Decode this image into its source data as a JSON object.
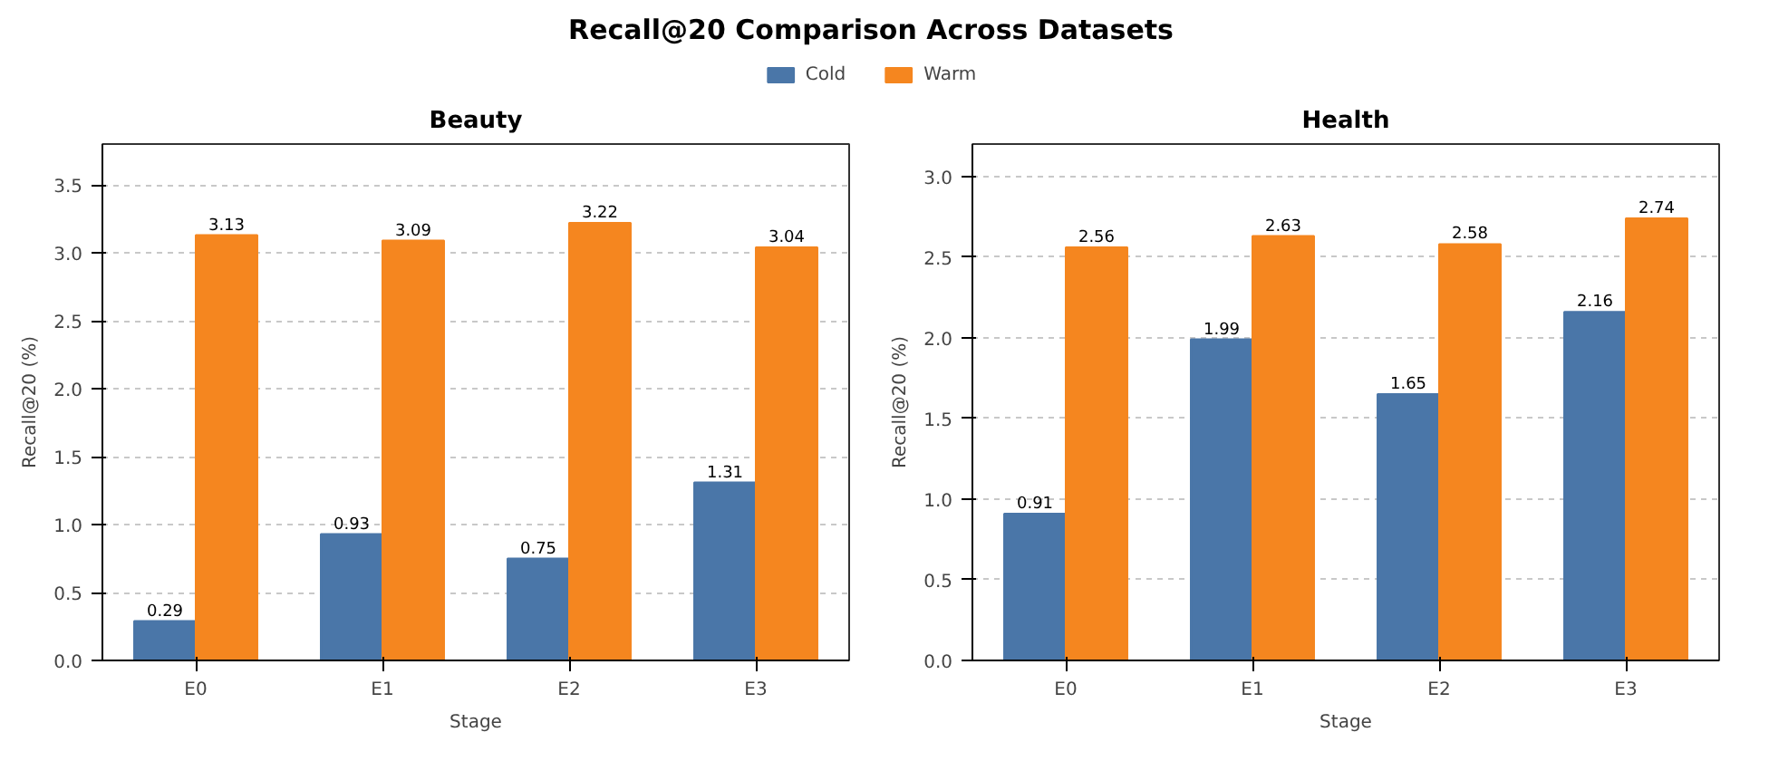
{
  "chart_data": [
    {
      "type": "bar",
      "title": "Beauty",
      "annotations": [
        "Recall@20 Comparison Across Datasets"
      ],
      "xlabel": "Stage",
      "ylabel": "Recall@20 (%)",
      "categories": [
        "E0",
        "E1",
        "E2",
        "E3"
      ],
      "series": [
        {
          "name": "Cold",
          "color": "#4a76a8",
          "values": [
            0.29,
            0.93,
            0.75,
            1.31
          ]
        },
        {
          "name": "Warm",
          "color": "#f5861f",
          "values": [
            3.13,
            3.09,
            3.22,
            3.04
          ]
        }
      ],
      "ylim": [
        0,
        3.8
      ],
      "yticks": [
        {
          "value": 0,
          "label": "0.0"
        },
        {
          "value": 0.5,
          "label": "0.5"
        },
        {
          "value": 1,
          "label": "1.0"
        },
        {
          "value": 1.5,
          "label": "1.5"
        },
        {
          "value": 2,
          "label": "2.0"
        },
        {
          "value": 2.5,
          "label": "2.5"
        },
        {
          "value": 3,
          "label": "3.0"
        },
        {
          "value": 3.5,
          "label": "3.5"
        }
      ],
      "data_labels": true,
      "grid": "y",
      "legend": "top"
    },
    {
      "type": "bar",
      "title": "Health",
      "xlabel": "Stage",
      "ylabel": "Recall@20 (%)",
      "categories": [
        "E0",
        "E1",
        "E2",
        "E3"
      ],
      "series": [
        {
          "name": "Cold",
          "color": "#4a76a8",
          "values": [
            0.91,
            1.99,
            1.65,
            2.16
          ]
        },
        {
          "name": "Warm",
          "color": "#f5861f",
          "values": [
            2.56,
            2.63,
            2.58,
            2.74
          ]
        }
      ],
      "ylim": [
        0,
        3.2
      ],
      "yticks": [
        {
          "value": 0,
          "label": "0.0"
        },
        {
          "value": 0.5,
          "label": "0.5"
        },
        {
          "value": 1,
          "label": "1.0"
        },
        {
          "value": 1.5,
          "label": "1.5"
        },
        {
          "value": 2,
          "label": "2.0"
        },
        {
          "value": 2.5,
          "label": "2.5"
        },
        {
          "value": 3,
          "label": "3.0"
        }
      ],
      "data_labels": true,
      "grid": "y"
    }
  ]
}
